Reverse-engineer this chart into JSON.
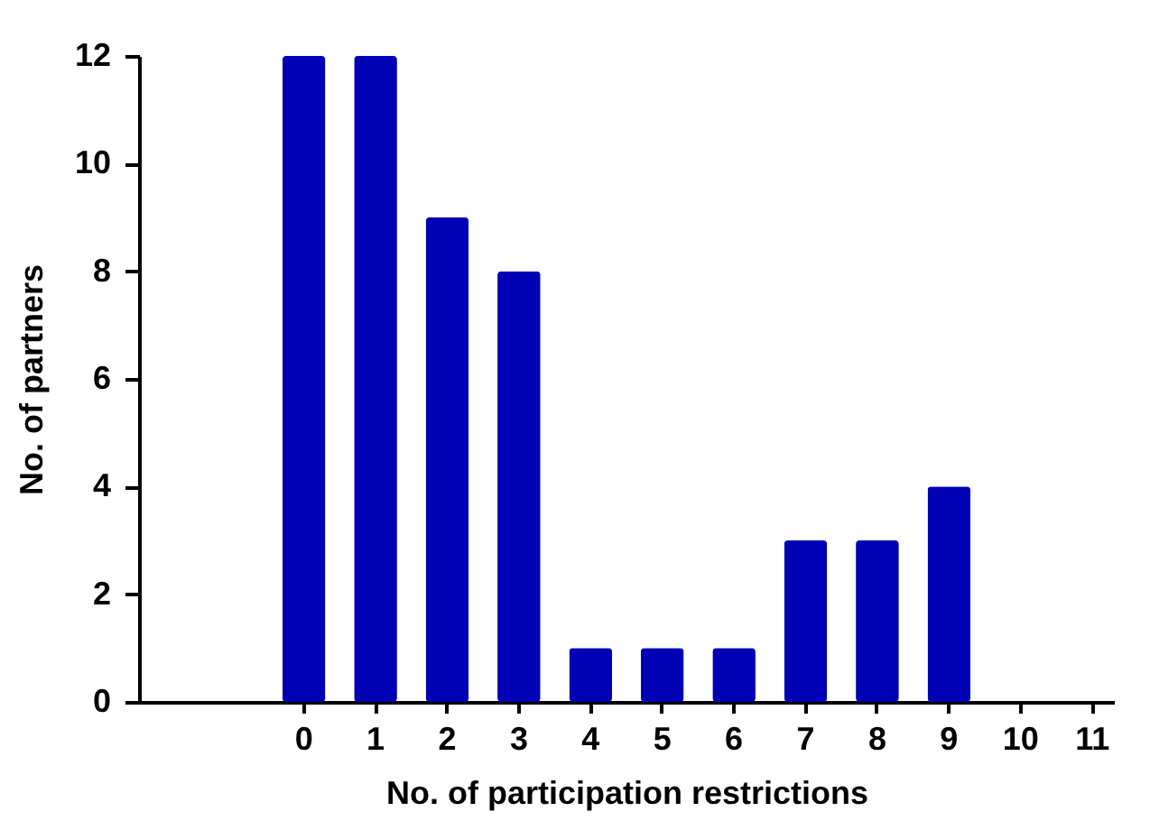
{
  "chart_data": {
    "type": "bar",
    "xlabel": "No. of participation restrictions",
    "ylabel": "No. of partners",
    "categories": [
      "0",
      "1",
      "2",
      "3",
      "4",
      "5",
      "6",
      "7",
      "8",
      "9",
      "10",
      "11"
    ],
    "values": [
      12,
      12,
      9,
      8,
      1,
      1,
      1,
      3,
      3,
      4,
      0,
      0
    ],
    "color": "#0000b4",
    "ylim": [
      0,
      12
    ],
    "yticks": [
      0,
      2,
      4,
      6,
      8,
      10,
      12
    ],
    "grid": false
  }
}
